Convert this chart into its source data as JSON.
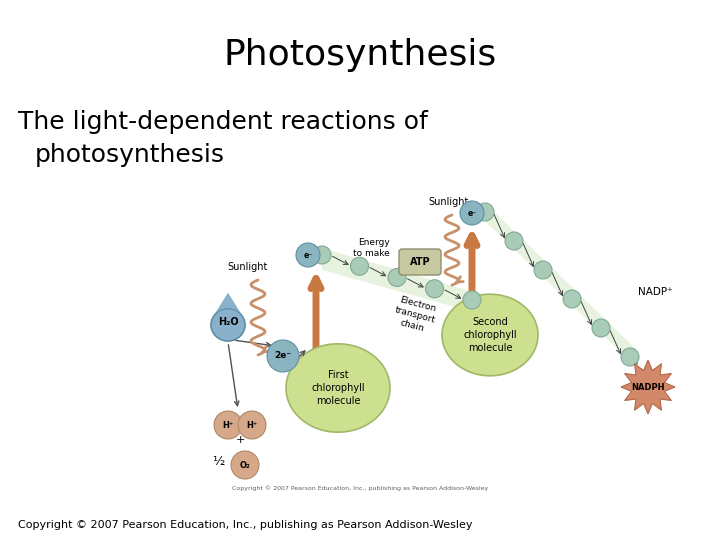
{
  "title": "Photosynthesis",
  "subtitle_line1": "The light-dependent reactions of",
  "subtitle_line2": "  photosynthesis",
  "copyright": "Copyright © 2007 Pearson Education, Inc., publishing as Pearson Addison-Wesley",
  "bg_color": "#ffffff",
  "title_fontsize": 26,
  "subtitle_fontsize": 18,
  "copyright_fontsize": 8,
  "chlorophyll_color": "#cce090",
  "chlorophyll_edge": "#a0b868",
  "electron_fill": "#8ab4c0",
  "electron_edge": "#6090a0",
  "chain_fill": "#a8ccb8",
  "chain_edge": "#80aa90",
  "nadph_color": "#d4886a",
  "nadph_edge": "#b06848",
  "atp_color": "#c8c8a0",
  "atp_edge": "#909070",
  "h2o_color": "#8ab0cc",
  "h2o_edge": "#6090aa",
  "h_color": "#d4a888",
  "h_edge": "#b08868",
  "o2_color": "#d4a888",
  "o2_edge": "#b08868",
  "sunlight_color": "#c8906a",
  "arrow_color": "#c87840",
  "black": "#000000",
  "dark_gray": "#404040"
}
